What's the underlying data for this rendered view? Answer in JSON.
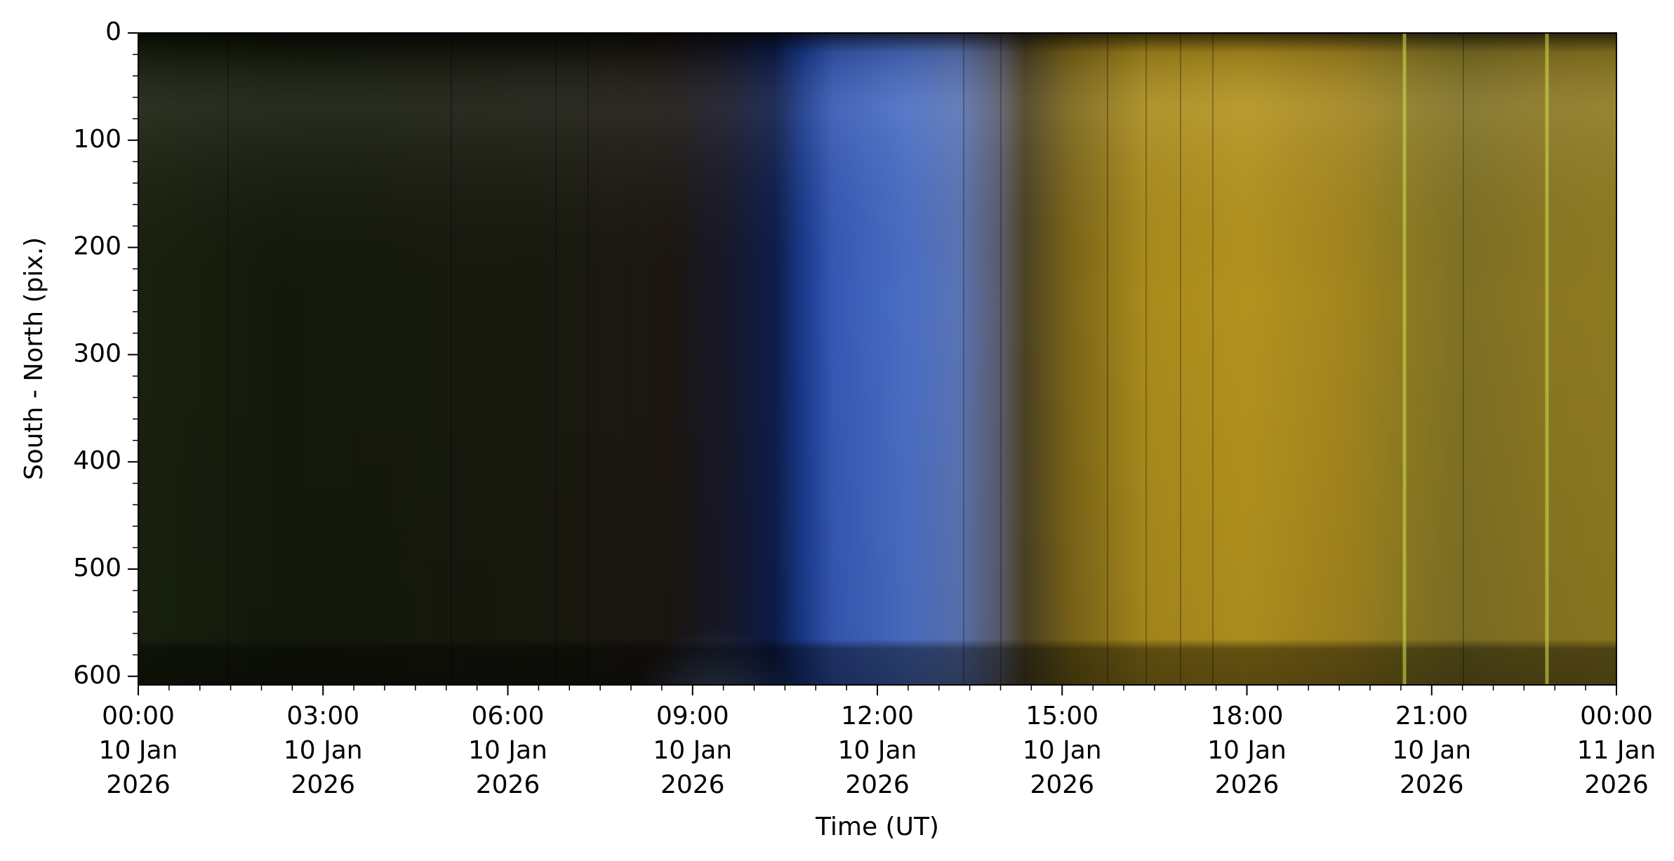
{
  "chart_data": {
    "type": "keogram",
    "x_label": "Time (UT)",
    "y_label": "South - North (pix.)",
    "xlim": [
      "2026-01-10T00:00",
      "2026-01-11T00:00"
    ],
    "xticks": [
      {
        "value": "2026-01-10T00:00",
        "label": "00:00\n10 Jan\n2026"
      },
      {
        "value": "2026-01-10T03:00",
        "label": "03:00\n10 Jan\n2026"
      },
      {
        "value": "2026-01-10T06:00",
        "label": "06:00\n10 Jan\n2026"
      },
      {
        "value": "2026-01-10T09:00",
        "label": "09:00\n10 Jan\n2026"
      },
      {
        "value": "2026-01-10T12:00",
        "label": "12:00\n10 Jan\n2026"
      },
      {
        "value": "2026-01-10T15:00",
        "label": "15:00\n10 Jan\n2026"
      },
      {
        "value": "2026-01-10T18:00",
        "label": "18:00\n10 Jan\n2026"
      },
      {
        "value": "2026-01-10T21:00",
        "label": "21:00\n10 Jan\n2026"
      },
      {
        "value": "2026-01-11T00:00",
        "label": "00:00\n11 Jan\n2026"
      }
    ],
    "x_minor_step_minutes": 30,
    "ylim": [
      608,
      0
    ],
    "yticks": [
      0,
      100,
      200,
      300,
      400,
      500,
      600
    ],
    "y_minor_step": 20
  }
}
